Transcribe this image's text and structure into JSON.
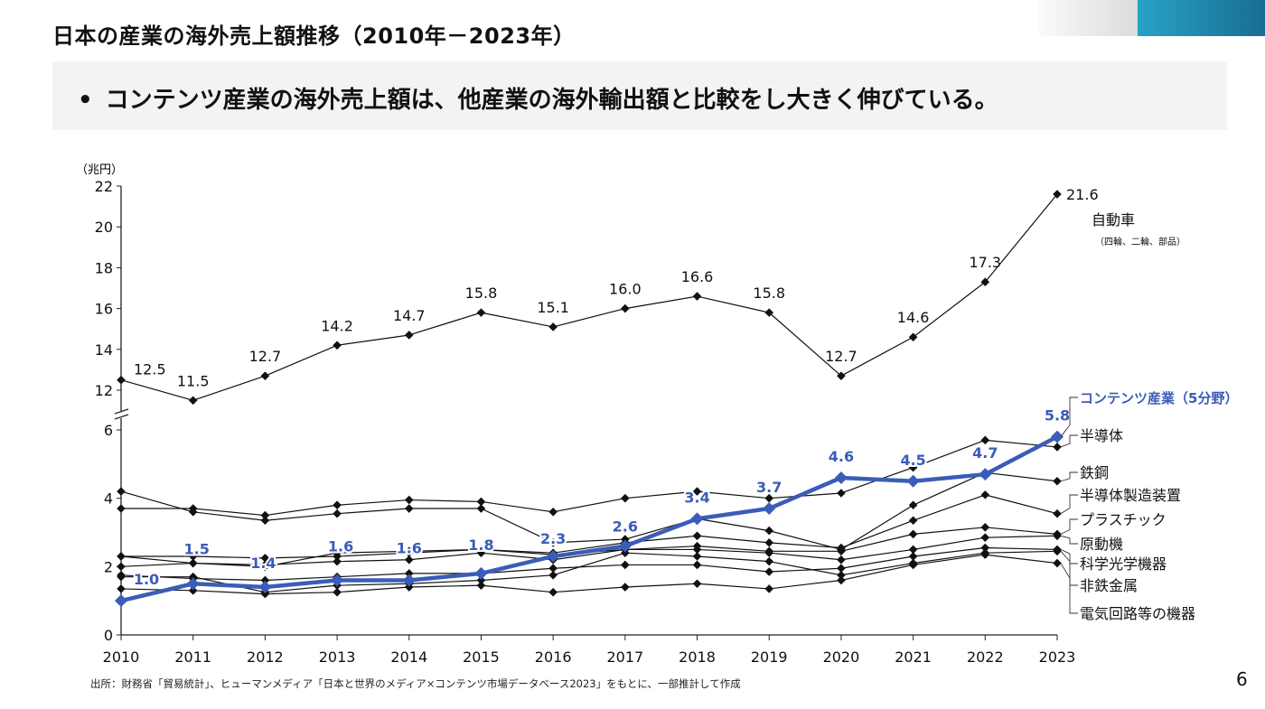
{
  "header": {
    "title": "日本の産業の海外売上額推移（2010年－2023年）",
    "banner_bullet": "•",
    "banner_text": "コンテンツ産業の海外売上額は、他産業の海外輸出額と比較をし大きく伸びている。"
  },
  "footer": {
    "source": "出所：財務省「貿易統計」、ヒューマンメディア「日本と世界のメディア×コンテンツ市場データベース2023」をもとに、一部推計して作成",
    "page_number": "6"
  },
  "colors": {
    "highlight": "#3b5cb8",
    "line": "#111111",
    "accent_bar": "#2196c4"
  },
  "chart_data": {
    "type": "line",
    "title": "日本の産業の海外売上額推移（2010年－2023年）",
    "ylabel": "（兆円）",
    "xlabel": "",
    "y_axis_break": true,
    "ylim_lower": [
      0,
      6
    ],
    "ylim_upper": [
      12,
      22
    ],
    "yticks_lower": [
      "0",
      "2",
      "4",
      "6"
    ],
    "yticks_upper": [
      "12",
      "14",
      "16",
      "18",
      "20",
      "22"
    ],
    "grid": false,
    "legend": "right (labels at line ends)",
    "x": [
      "2010",
      "2011",
      "2012",
      "2013",
      "2014",
      "2015",
      "2016",
      "2017",
      "2018",
      "2019",
      "2020",
      "2021",
      "2022",
      "2023"
    ],
    "series": [
      {
        "name": "自動車",
        "sublabel": "（四輪、二輪、部品）",
        "panel": "upper",
        "highlight": false,
        "show_labels": true,
        "values": [
          12.5,
          11.5,
          12.7,
          14.2,
          14.7,
          15.8,
          15.1,
          16.0,
          16.6,
          15.8,
          12.7,
          14.6,
          17.3,
          21.6
        ]
      },
      {
        "name": "コンテンツ産業（5分野）",
        "panel": "lower",
        "highlight": true,
        "show_labels": true,
        "values": [
          1.0,
          1.5,
          1.4,
          1.6,
          1.6,
          1.8,
          2.3,
          2.6,
          3.4,
          3.7,
          4.6,
          4.5,
          4.7,
          5.8
        ]
      },
      {
        "name": "半導体",
        "panel": "lower",
        "highlight": false,
        "values": [
          3.7,
          3.7,
          3.5,
          3.8,
          3.95,
          3.9,
          3.6,
          4.0,
          4.2,
          4.0,
          4.15,
          4.9,
          5.7,
          5.5
        ]
      },
      {
        "name": "鉄鋼",
        "panel": "lower",
        "highlight": false,
        "values": [
          4.2,
          3.6,
          3.35,
          3.55,
          3.7,
          3.7,
          2.7,
          2.8,
          3.4,
          3.05,
          2.5,
          3.8,
          4.75,
          4.5
        ]
      },
      {
        "name": "半導体製造装置",
        "panel": "lower",
        "highlight": false,
        "values": [
          2.3,
          2.1,
          2.0,
          2.4,
          2.45,
          2.5,
          2.4,
          2.7,
          2.9,
          2.7,
          2.55,
          3.35,
          4.1,
          3.55
        ]
      },
      {
        "name": "プラスチック",
        "panel": "lower",
        "highlight": false,
        "values": [
          2.3,
          2.3,
          2.25,
          2.3,
          2.4,
          2.5,
          2.35,
          2.5,
          2.6,
          2.45,
          2.45,
          2.95,
          3.15,
          2.95
        ]
      },
      {
        "name": "原動機",
        "panel": "lower",
        "highlight": false,
        "values": [
          2.0,
          2.1,
          2.05,
          2.15,
          2.2,
          2.4,
          2.2,
          2.5,
          2.5,
          2.4,
          2.2,
          2.5,
          2.85,
          2.9
        ]
      },
      {
        "name": "科学光学機器",
        "panel": "lower",
        "highlight": false,
        "values": [
          1.75,
          1.65,
          1.6,
          1.7,
          1.8,
          1.8,
          1.95,
          2.05,
          2.05,
          1.85,
          1.95,
          2.3,
          2.55,
          2.5
        ]
      },
      {
        "name": "非鉄金属",
        "panel": "lower",
        "highlight": false,
        "values": [
          1.7,
          1.7,
          1.25,
          1.45,
          1.5,
          1.6,
          1.75,
          2.4,
          2.3,
          2.15,
          1.75,
          2.1,
          2.4,
          2.45
        ]
      },
      {
        "name": "電気回路等の機器",
        "panel": "lower",
        "highlight": false,
        "values": [
          1.35,
          1.3,
          1.2,
          1.25,
          1.4,
          1.45,
          1.25,
          1.4,
          1.5,
          1.35,
          1.6,
          2.05,
          2.35,
          2.1
        ]
      }
    ]
  }
}
